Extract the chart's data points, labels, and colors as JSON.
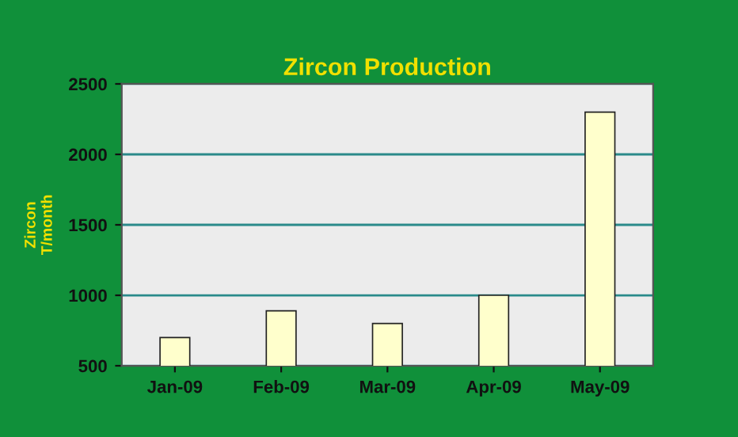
{
  "chart_data": {
    "type": "bar",
    "title": "Zircon Production",
    "ylabel": "Zircon\nT/month",
    "categories": [
      "Jan-09",
      "Feb-09",
      "Mar-09",
      "Apr-09",
      "May-09"
    ],
    "values": [
      700,
      890,
      800,
      1000,
      2300
    ],
    "color": "#ffffcc",
    "ylim": [
      500,
      2500
    ],
    "yticks": [
      500,
      1000,
      1500,
      2000,
      2500
    ],
    "grid": "y"
  }
}
